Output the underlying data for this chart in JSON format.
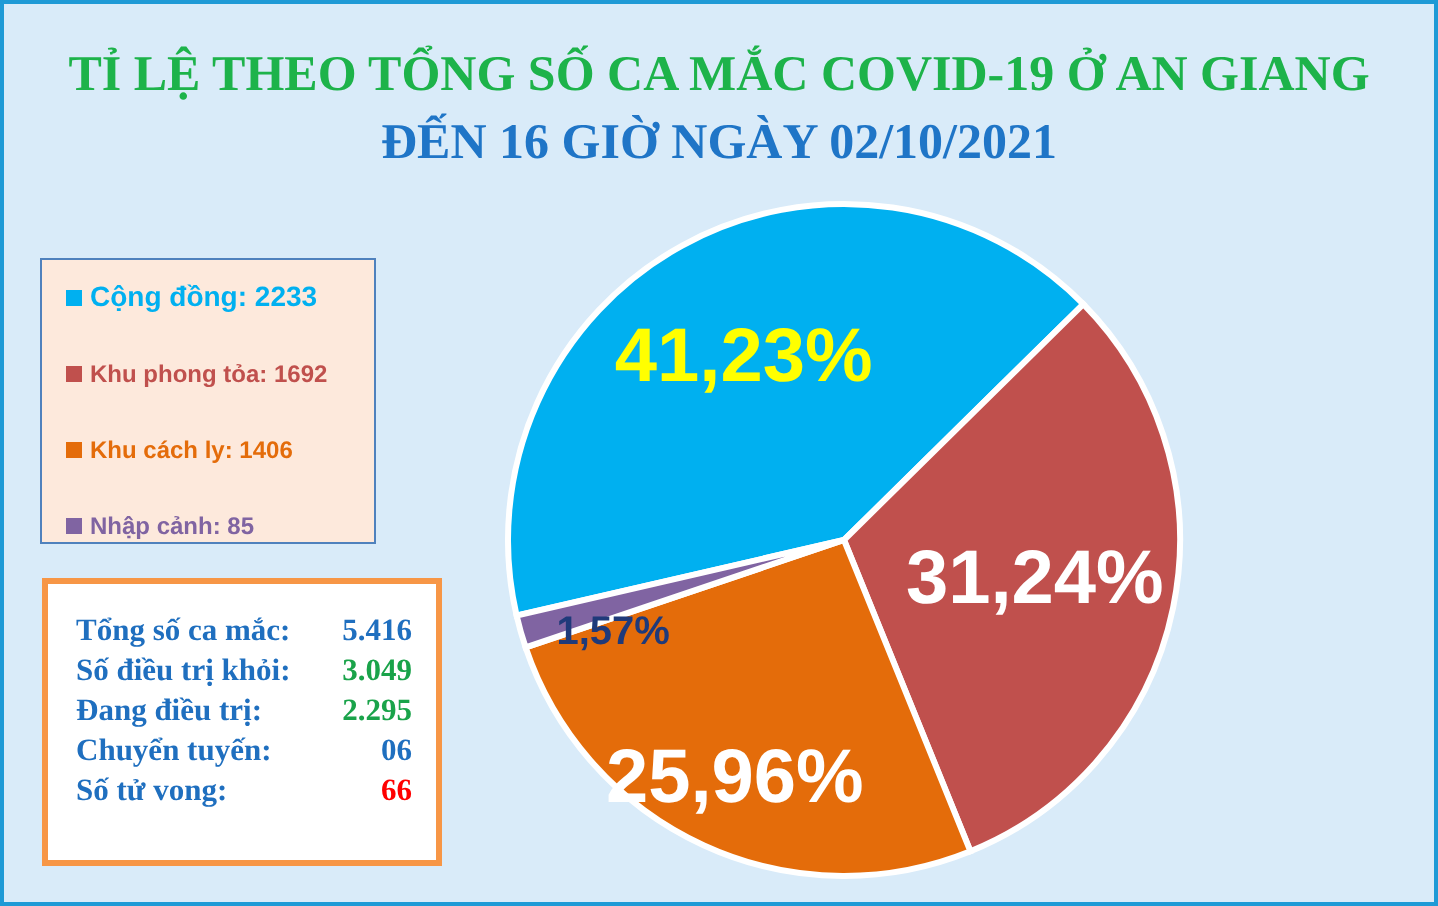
{
  "chart_data": {
    "type": "pie",
    "title": "TỈ LỆ THEO TỔNG SỐ CA MẮC COVID-19 Ở AN GIANG",
    "subtitle": "ĐẾN 16 GIỜ NGÀY 02/10/2021",
    "categories": [
      "Cộng đồng: 2233",
      "Khu phong tỏa: 1692",
      "Khu cách ly: 1406",
      "Nhập cảnh: 85"
    ],
    "values": [
      41.23,
      31.24,
      25.96,
      1.57
    ],
    "colors": [
      "#00b0f0",
      "#c0504d",
      "#e46c0a",
      "#8064a2"
    ],
    "value_labels": [
      "41,23%",
      "31,24%",
      "25,96%",
      "1,57%"
    ],
    "legend": "left",
    "annotations": [
      "Tổng số ca mắc: 5.416",
      "Số điều trị khỏi: 3.049",
      "Đang điều trị: 2.295",
      "Chuyển tuyến: 06",
      "Số tử vong: 66"
    ]
  }
}
